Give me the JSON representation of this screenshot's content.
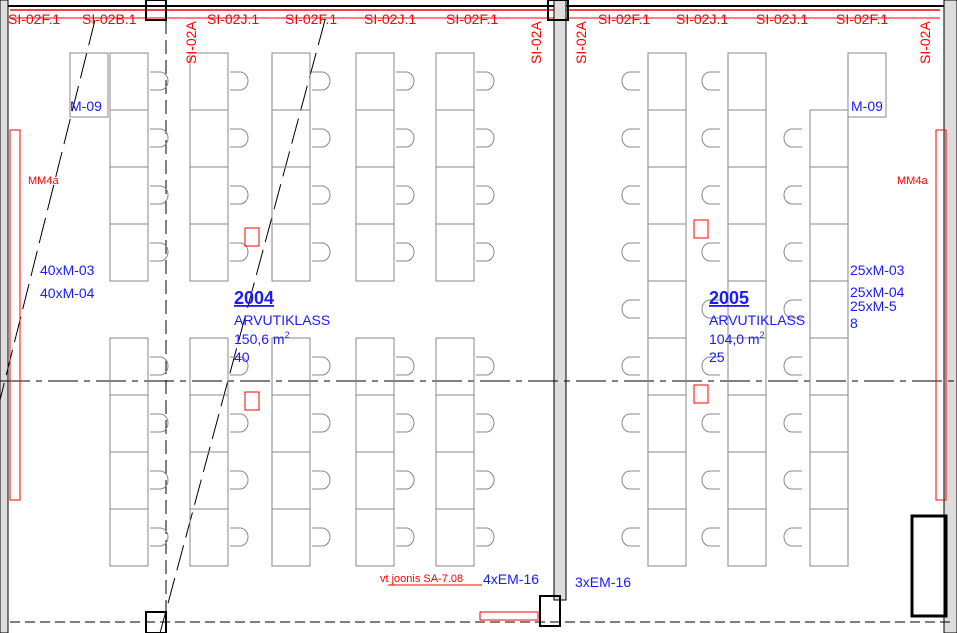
{
  "colors": {
    "tag": "#ff0000",
    "label": "#1a1aff",
    "wall": "#000000",
    "furniture": "#888888"
  },
  "top_tags_left": [
    "SI-02F.1",
    "SI-02B.1",
    "SI-02J.1",
    "SI-02F.1",
    "SI-02J.1",
    "SI-02F.1"
  ],
  "top_tags_right": [
    "SI-02F.1",
    "SI-02J.1",
    "SI-02J.1",
    "SI-02F.1"
  ],
  "vertical_tag": "SI-02A",
  "equipment_tag": "M-09",
  "wall_tag": "MM4a",
  "room_2004": {
    "number": "2004",
    "name": "ARVUTIKLASS",
    "area": "150,6 m",
    "area_sup": "2",
    "seats": "40",
    "equipment": [
      "40xM-03",
      "40xM-04"
    ]
  },
  "room_2005": {
    "number": "2005",
    "name": "ARVUTIKLASS",
    "area": "104,0 m",
    "area_sup": "2",
    "seats": "25",
    "equipment": [
      "25xM-03",
      "25xM-04",
      "25xM-5",
      "8"
    ]
  },
  "bottom": {
    "reference": "vt joonis SA-7.08",
    "left_em": "4xEM-16",
    "right_em": "3xEM-16"
  }
}
